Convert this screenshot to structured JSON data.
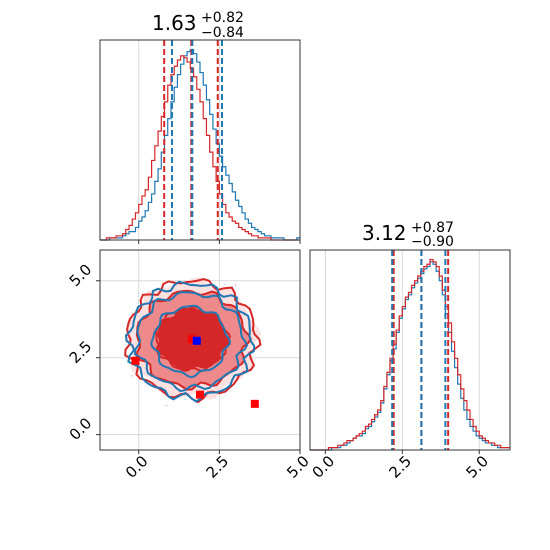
{
  "chart_data": [
    {
      "type": "histogram",
      "panel": "top-left",
      "title": {
        "median": "1.63",
        "plus": "+0.82",
        "minus": "−0.84"
      },
      "xlim": [
        -1.2,
        5.0
      ],
      "grid": true,
      "quantile_lines": {
        "red": [
          0.79,
          1.63,
          2.45
        ],
        "blue": [
          1.0,
          1.63,
          2.55
        ]
      },
      "series": [
        {
          "color": "#1f77b4",
          "bin_start": -1.2,
          "bin_width": 0.1,
          "values": [
            0,
            0,
            0,
            1,
            1,
            1,
            1,
            2,
            3,
            4,
            4,
            6,
            9,
            11,
            14,
            18,
            22,
            28,
            34,
            42,
            50,
            58,
            66,
            73,
            79,
            84,
            88,
            90,
            91,
            89,
            85,
            80,
            74,
            67,
            60,
            53,
            46,
            40,
            35,
            31,
            27,
            23,
            19,
            16,
            13,
            10,
            8,
            6,
            5,
            4,
            3,
            2,
            2,
            1,
            1,
            1,
            1,
            0,
            0,
            0,
            0,
            1
          ]
        },
        {
          "color": "#d62728",
          "bin_start": -1.2,
          "bin_width": 0.1,
          "values": [
            0,
            0,
            1,
            1,
            1,
            2,
            2,
            3,
            5,
            7,
            10,
            13,
            17,
            21,
            24,
            30,
            38,
            45,
            52,
            59,
            66,
            74,
            79,
            83,
            86,
            88,
            87,
            85,
            82,
            78,
            72,
            66,
            58,
            50,
            42,
            35,
            28,
            22,
            17,
            13,
            11,
            9,
            8,
            6,
            5,
            4,
            3,
            2,
            2,
            1,
            1,
            1,
            1,
            0,
            0,
            0,
            0,
            0,
            0,
            0,
            0,
            0
          ]
        }
      ]
    },
    {
      "type": "contour",
      "panel": "bottom-left",
      "xlim": [
        -1.2,
        5.0
      ],
      "ylim": [
        -0.5,
        6.0
      ],
      "xticks": [
        "0.0",
        "2.5",
        "5.0"
      ],
      "yticks": [
        "0.0",
        "2.5",
        "5.0"
      ],
      "grid": true,
      "red_contours": {
        "center": [
          1.65,
          3.1
        ],
        "radii": [
          [
            1.1,
            1.0
          ],
          [
            1.7,
            1.55
          ],
          [
            2.0,
            1.9
          ]
        ]
      },
      "blue_contours": {
        "center": [
          1.6,
          3.05
        ],
        "radii": [
          [
            1.15,
            1.1
          ],
          [
            1.65,
            1.55
          ],
          [
            1.9,
            1.85
          ]
        ]
      },
      "markers": [
        {
          "color": "#ff0000",
          "x": -0.1,
          "y": 2.4
        },
        {
          "color": "#ff0000",
          "x": 1.9,
          "y": 1.3
        },
        {
          "color": "#ff0000",
          "x": 3.6,
          "y": 1.0
        },
        {
          "color": "#ff0000",
          "x": 1.65,
          "y": 3.1
        },
        {
          "color": "#0000ff",
          "x": 1.8,
          "y": 3.05
        }
      ]
    },
    {
      "type": "histogram",
      "panel": "bottom-right",
      "title": {
        "median": "3.12",
        "plus": "+0.87",
        "minus": "−0.90"
      },
      "xlim": [
        -0.5,
        6.0
      ],
      "xticks": [
        "0.0",
        "2.5",
        "5.0"
      ],
      "grid": true,
      "quantile_lines": {
        "red": [
          2.22,
          3.12,
          3.99
        ],
        "blue": [
          2.17,
          3.12,
          3.9
        ]
      },
      "series": [
        {
          "color": "#1f77b4",
          "bin_start": -0.5,
          "bin_width": 0.1,
          "values": [
            0,
            0,
            0,
            0,
            0,
            0,
            0,
            1,
            1,
            1,
            2,
            2,
            3,
            4,
            5,
            6,
            6,
            7,
            9,
            10,
            12,
            14,
            16,
            20,
            26,
            32,
            38,
            43,
            50,
            56,
            60,
            64,
            66,
            69,
            71,
            73,
            75,
            77,
            78,
            80,
            79,
            76,
            72,
            66,
            58,
            50,
            42,
            35,
            28,
            22,
            17,
            13,
            10,
            8,
            6,
            5,
            4,
            3,
            3,
            2,
            2,
            1,
            1,
            1,
            1
          ]
        },
        {
          "color": "#d62728",
          "bin_start": -0.5,
          "bin_width": 0.1,
          "values": [
            0,
            0,
            0,
            0,
            0,
            0,
            1,
            1,
            1,
            2,
            2,
            3,
            4,
            4,
            5,
            6,
            7,
            8,
            10,
            11,
            13,
            15,
            17,
            21,
            27,
            33,
            39,
            45,
            51,
            57,
            61,
            65,
            67,
            70,
            72,
            74,
            76,
            78,
            79,
            81,
            80,
            78,
            74,
            68,
            61,
            54,
            46,
            39,
            32,
            26,
            21,
            17,
            13,
            10,
            8,
            6,
            5,
            4,
            3,
            3,
            2,
            2,
            1,
            1,
            1
          ]
        }
      ]
    }
  ]
}
